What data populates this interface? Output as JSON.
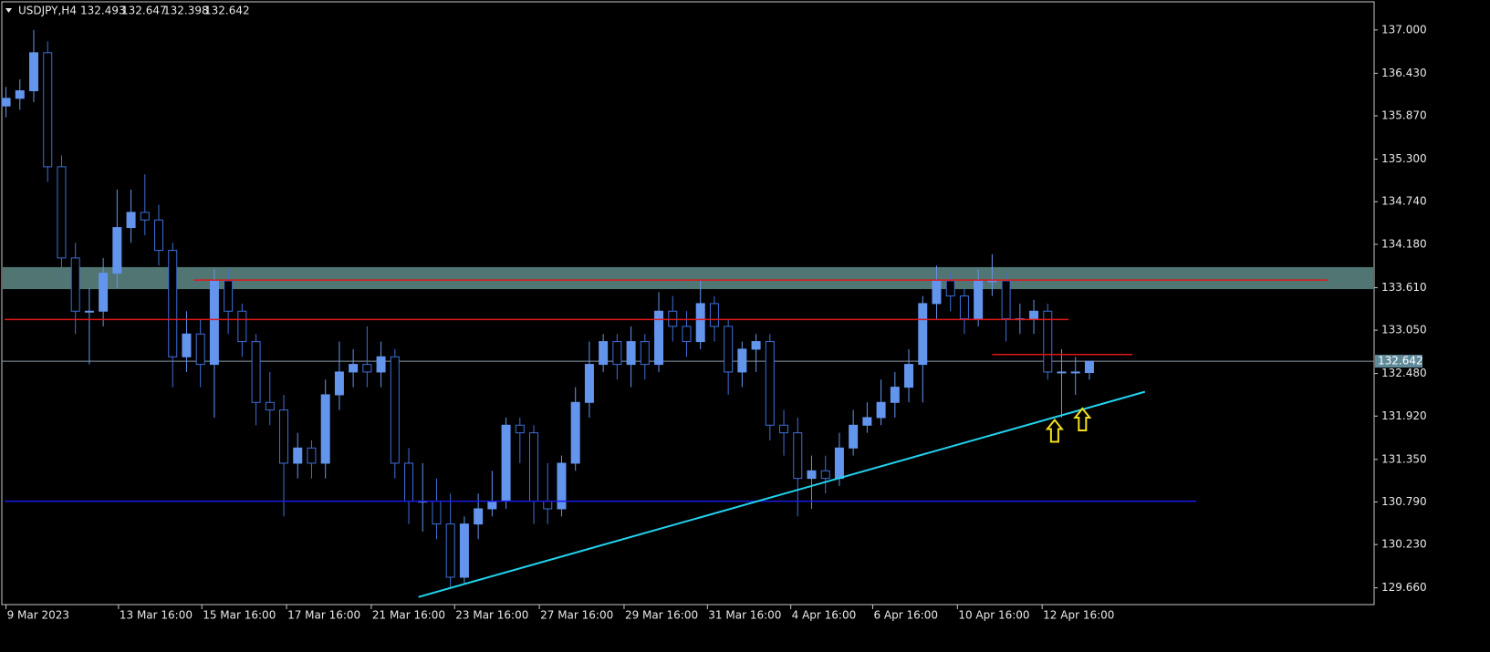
{
  "chart_data": {
    "type": "candlestick",
    "title": "USDJPY,H4",
    "xlim": [
      -0.3,
      98.5
    ],
    "ylim": [
      129.44,
      137.37
    ],
    "xticks": [
      {
        "value": 0,
        "label": "9 Mar 2023"
      },
      {
        "value": 8.1,
        "label": "13 Mar 16:00"
      },
      {
        "value": 14.1,
        "label": "15 Mar 16:00"
      },
      {
        "value": 20.2,
        "label": "17 Mar 16:00"
      },
      {
        "value": 26.3,
        "label": "21 Mar 16:00"
      },
      {
        "value": 32.3,
        "label": "23 Mar 16:00"
      },
      {
        "value": 38.4,
        "label": "27 Mar 16:00"
      },
      {
        "value": 44.5,
        "label": "29 Mar 16:00"
      },
      {
        "value": 50.5,
        "label": "31 Mar 16:00"
      },
      {
        "value": 56.5,
        "label": "4 Apr 16:00"
      },
      {
        "value": 62.4,
        "label": "6 Apr 16:00"
      },
      {
        "value": 68.5,
        "label": "10 Apr 16:00"
      },
      {
        "value": 74.6,
        "label": "12 Apr 16:00"
      }
    ],
    "yticks": [
      {
        "value": 137,
        "label": "137.000"
      },
      {
        "value": 136.43,
        "label": "136.430"
      },
      {
        "value": 135.87,
        "label": "135.870"
      },
      {
        "value": 135.3,
        "label": "135.300"
      },
      {
        "value": 134.74,
        "label": "134.740"
      },
      {
        "value": 134.18,
        "label": "134.180"
      },
      {
        "value": 133.61,
        "label": "133.610"
      },
      {
        "value": 133.05,
        "label": "133.050"
      },
      {
        "value": 132.48,
        "label": "132.480"
      },
      {
        "value": 131.92,
        "label": "131.920"
      },
      {
        "value": 131.35,
        "label": "131.350"
      },
      {
        "value": 130.79,
        "label": "130.790"
      },
      {
        "value": 130.23,
        "label": "130.230"
      },
      {
        "value": 129.66,
        "label": "129.660"
      }
    ],
    "current_price": 132.642,
    "bull_color": "#6495ed",
    "bear_color": "#3f6fd8",
    "open": [
      136.0,
      136.1,
      136.2,
      136.7,
      135.2,
      134.0,
      133.3,
      133.3,
      133.8,
      134.4,
      134.6,
      134.5,
      134.1,
      132.7,
      133.0,
      132.6,
      133.7,
      133.3,
      132.9,
      132.1,
      132.0,
      131.3,
      131.5,
      131.3,
      132.2,
      132.5,
      132.6,
      132.5,
      132.7,
      131.3,
      130.8,
      130.8,
      130.5,
      129.8,
      130.5,
      130.7,
      130.8,
      131.8,
      131.7,
      130.8,
      130.7,
      131.3,
      132.1,
      132.6,
      132.9,
      132.6,
      132.9,
      132.6,
      133.3,
      133.1,
      132.9,
      133.4,
      133.1,
      132.5,
      132.8,
      132.9,
      131.8,
      131.7,
      131.1,
      131.2,
      131.1,
      131.5,
      131.8,
      131.9,
      132.1,
      132.3,
      132.6,
      133.4,
      133.7,
      133.5,
      133.2,
      133.7,
      133.7,
      133.2,
      133.2,
      133.3,
      132.5,
      132.5,
      132.493
    ],
    "high": [
      136.25,
      136.35,
      137.0,
      136.85,
      135.35,
      134.2,
      133.6,
      134.0,
      134.9,
      134.9,
      135.1,
      134.7,
      134.2,
      133.3,
      133.2,
      133.85,
      133.85,
      133.4,
      133.0,
      132.5,
      132.2,
      131.7,
      131.6,
      132.4,
      132.9,
      132.8,
      133.1,
      132.9,
      132.8,
      131.5,
      131.3,
      131.1,
      130.9,
      130.6,
      130.9,
      131.2,
      131.9,
      131.9,
      131.8,
      131.3,
      131.4,
      132.3,
      132.9,
      133.0,
      133.0,
      133.1,
      133.0,
      133.55,
      133.5,
      133.3,
      133.7,
      133.5,
      133.2,
      132.9,
      133.0,
      133.0,
      132.0,
      131.9,
      131.4,
      131.4,
      131.7,
      132.0,
      132.1,
      132.4,
      132.5,
      132.8,
      133.5,
      133.9,
      133.8,
      133.6,
      133.85,
      134.05,
      133.8,
      133.4,
      133.45,
      133.4,
      132.8,
      132.7,
      132.647
    ],
    "low": [
      135.85,
      135.95,
      136.05,
      135.0,
      133.7,
      133.0,
      132.6,
      133.1,
      133.6,
      134.2,
      134.3,
      133.9,
      132.3,
      132.5,
      132.3,
      131.9,
      133.0,
      132.7,
      131.8,
      131.8,
      130.6,
      131.1,
      131.1,
      131.1,
      132.0,
      132.3,
      132.3,
      132.3,
      131.1,
      130.5,
      130.4,
      130.3,
      129.66,
      129.7,
      130.3,
      130.6,
      130.7,
      131.3,
      130.5,
      130.5,
      130.6,
      131.2,
      131.9,
      132.5,
      132.4,
      132.3,
      132.4,
      132.5,
      132.9,
      132.7,
      132.8,
      132.9,
      132.2,
      132.3,
      132.5,
      131.6,
      131.4,
      130.6,
      130.7,
      130.9,
      131.0,
      131.4,
      131.7,
      131.8,
      131.9,
      132.1,
      132.1,
      133.2,
      133.3,
      133.0,
      133.1,
      133.5,
      132.9,
      133.0,
      133.0,
      132.4,
      131.9,
      132.2,
      132.398
    ],
    "close": [
      136.1,
      136.2,
      136.7,
      135.2,
      134.0,
      133.3,
      133.3,
      133.8,
      134.4,
      134.6,
      134.5,
      134.1,
      132.7,
      133.0,
      132.6,
      133.7,
      133.3,
      132.9,
      132.1,
      132.0,
      131.3,
      131.5,
      131.3,
      132.2,
      132.5,
      132.6,
      132.5,
      132.7,
      131.3,
      130.8,
      130.8,
      130.5,
      129.8,
      130.5,
      130.7,
      130.8,
      131.8,
      131.7,
      130.8,
      130.7,
      131.3,
      132.1,
      132.6,
      132.9,
      132.6,
      132.9,
      132.6,
      133.3,
      133.1,
      132.9,
      133.4,
      133.1,
      132.5,
      132.8,
      132.9,
      131.8,
      131.7,
      131.1,
      131.2,
      131.1,
      131.5,
      131.8,
      131.9,
      132.1,
      132.3,
      132.6,
      133.4,
      133.7,
      133.5,
      133.2,
      133.7,
      133.7,
      133.2,
      133.2,
      133.3,
      132.5,
      132.5,
      132.5,
      132.642
    ],
    "zone": {
      "y": [
        133.59,
        133.88
      ],
      "color": "#5f8a86"
    },
    "levels": [
      {
        "y": 133.71,
        "x": [
          13.5,
          95.2
        ],
        "color": "#e01818"
      },
      {
        "y": 133.19,
        "x": [
          -0.1,
          76.5
        ],
        "color": "#e01818"
      },
      {
        "y": 132.73,
        "x": [
          71.0,
          81.1
        ],
        "color": "#e01818"
      },
      {
        "y": 130.8,
        "x": [
          -0.1,
          85.7
        ],
        "color": "#1a1ae6"
      }
    ],
    "trendline": {
      "x": [
        29.7,
        82.0
      ],
      "y": [
        129.54,
        132.24
      ],
      "color": "#22d3ee"
    },
    "arrows": [
      {
        "x": 75.5,
        "y": 131.75
      },
      {
        "x": 77.5,
        "y": 131.9
      }
    ],
    "arrow_color": "#f5e11a"
  }
}
